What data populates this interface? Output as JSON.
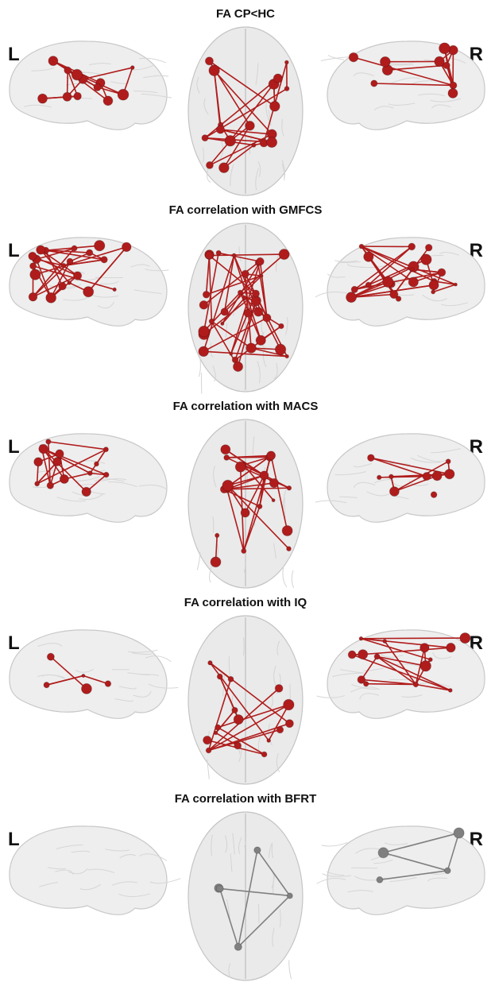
{
  "panels": [
    {
      "title": "FA CP<HC",
      "left_label": "L",
      "right_label": "R",
      "color": "#b01c1c"
    },
    {
      "title": "FA correlation with GMFCS",
      "left_label": "L",
      "right_label": "R",
      "color": "#b01c1c"
    },
    {
      "title": "FA correlation with MACS",
      "left_label": "L",
      "right_label": "R",
      "color": "#b01c1c"
    },
    {
      "title": "FA correlation with IQ",
      "left_label": "L",
      "right_label": "R",
      "color": "#b01c1c"
    },
    {
      "title": "FA correlation with BFRT",
      "left_label": "L",
      "right_label": "R",
      "color": "#808080"
    }
  ]
}
